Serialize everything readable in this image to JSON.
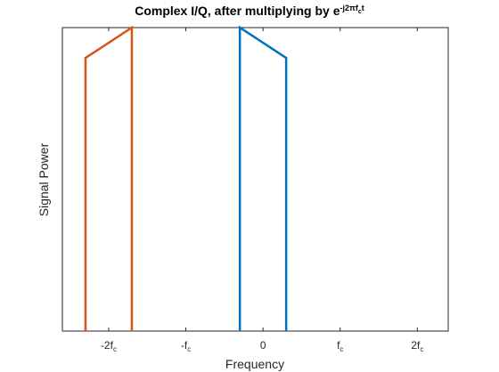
{
  "chart_data": {
    "type": "line",
    "title": {
      "base": "Complex I/Q, after multiplying by e",
      "exponent": "-j2πf",
      "exponent_sub": "c",
      "exponent_tail": "t"
    },
    "xlabel": "Frequency",
    "ylabel": "Signal Power",
    "xlim": [
      -2.6,
      2.4
    ],
    "ylim": [
      0,
      1
    ],
    "grid": false,
    "x_ticks": [
      {
        "value": -2,
        "base": "-2f",
        "sub": "c"
      },
      {
        "value": -1,
        "base": "-f",
        "sub": "c"
      },
      {
        "value": 0,
        "base": "0",
        "sub": ""
      },
      {
        "value": 1,
        "base": "f",
        "sub": "c"
      },
      {
        "value": 2,
        "base": "2f",
        "sub": "c"
      }
    ],
    "series": [
      {
        "color": "#0072BD",
        "x": [
          -0.3,
          -0.3,
          0.3,
          0.3
        ],
        "y": [
          0,
          1.0,
          0.9,
          0
        ]
      },
      {
        "color": "#D95319",
        "x": [
          -2.3,
          -2.3,
          -1.7,
          -1.7
        ],
        "y": [
          0,
          0.9,
          1.0,
          0
        ]
      }
    ]
  }
}
